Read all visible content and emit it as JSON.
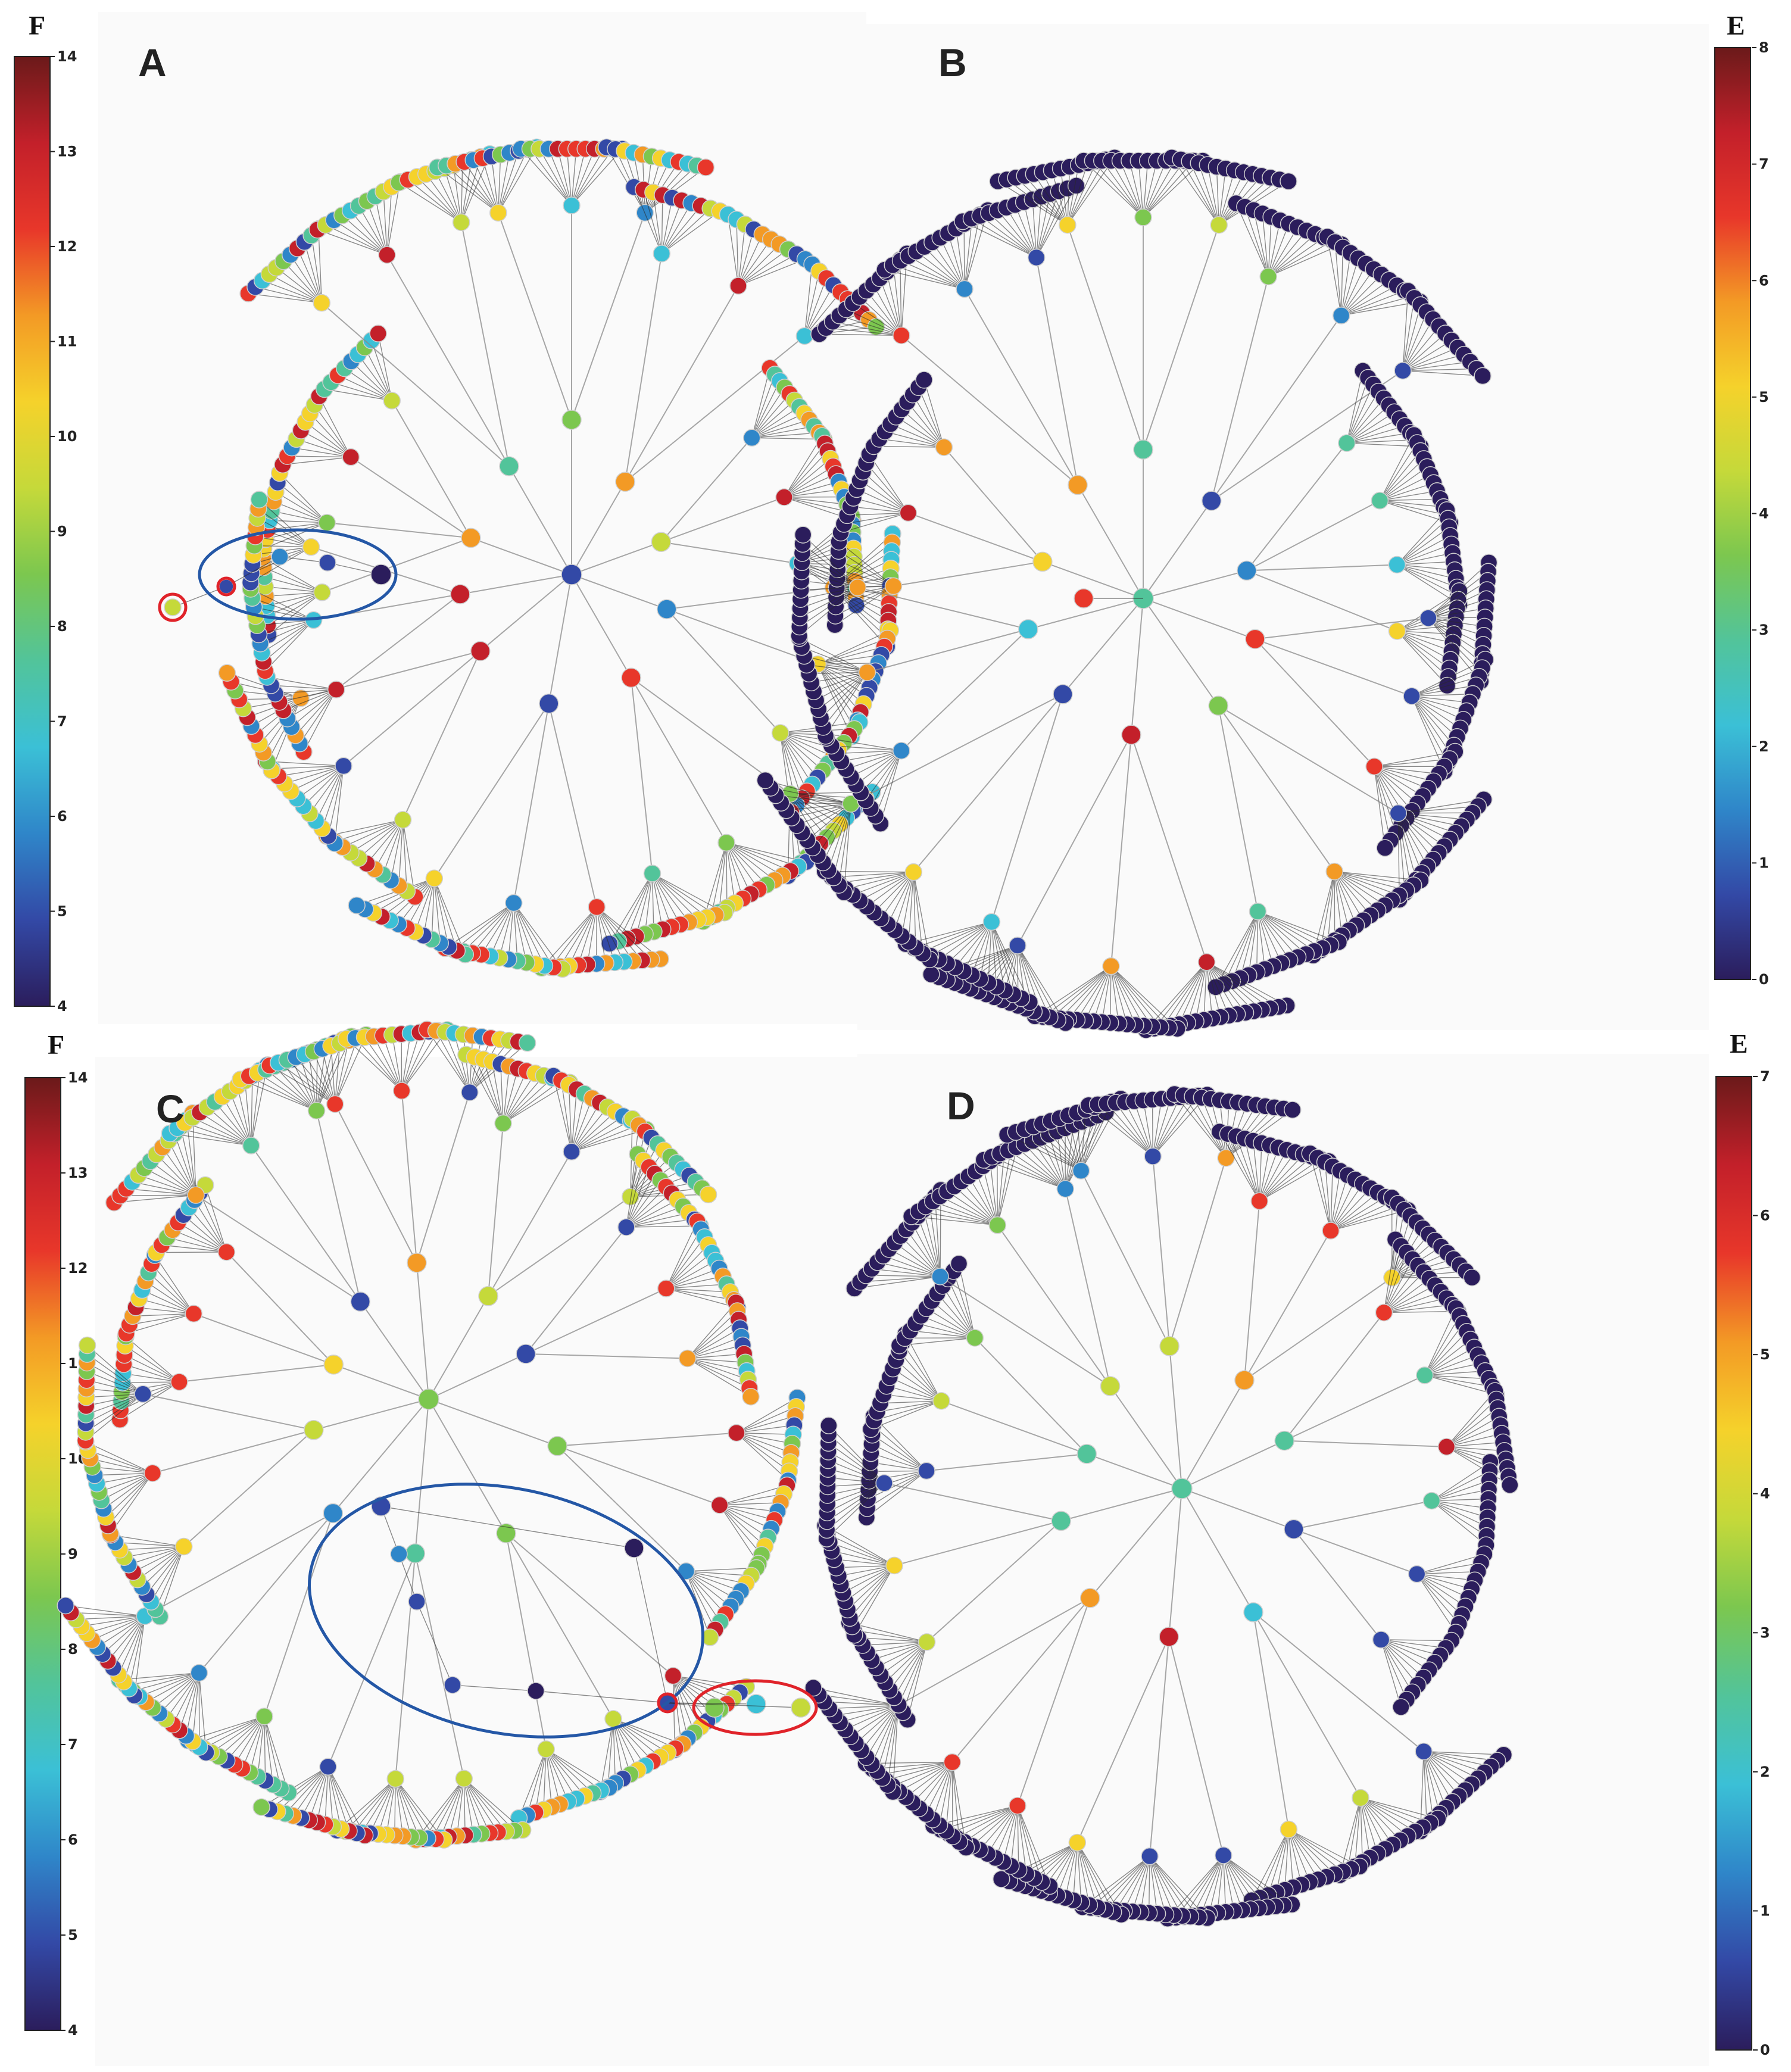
{
  "panels": [
    {
      "id": "A",
      "label": "A",
      "scale_ref": "F"
    },
    {
      "id": "B",
      "label": "B",
      "scale_ref": "E"
    },
    {
      "id": "C",
      "label": "C",
      "scale_ref": "F"
    },
    {
      "id": "D",
      "label": "D",
      "scale_ref": "E"
    }
  ],
  "colorbars": [
    {
      "id": "cb-top-left",
      "title": "F",
      "ticks": [
        "14",
        "13",
        "12",
        "11",
        "10",
        "9",
        "8",
        "7",
        "6",
        "5",
        "4"
      ],
      "min": 4,
      "max": 14
    },
    {
      "id": "cb-top-right",
      "title": "E",
      "ticks": [
        "8",
        "7",
        "6",
        "5",
        "4",
        "3",
        "2",
        "1",
        "0"
      ],
      "min": 0,
      "max": 8
    },
    {
      "id": "cb-bottom-left",
      "title": "F",
      "ticks": [
        "14",
        "13",
        "12",
        "11",
        "10",
        "9",
        "8",
        "7",
        "6",
        "5",
        "4"
      ],
      "min": 4,
      "max": 14
    },
    {
      "id": "cb-bottom-right",
      "title": "E",
      "ticks": [
        "7",
        "6",
        "5",
        "4",
        "3",
        "2",
        "1",
        "0"
      ],
      "min": 0,
      "max": 7
    }
  ],
  "colormap": [
    "#2b1d5c",
    "#3349a6",
    "#2f86c9",
    "#3bc0d6",
    "#52c49a",
    "#7cc74f",
    "#c5d93a",
    "#f5d22b",
    "#f39a25",
    "#e8372a",
    "#c3202a",
    "#6b1a1a"
  ],
  "highlights": [
    {
      "panel": "A",
      "type": "ellipse",
      "color": "#2457a6"
    },
    {
      "panel": "A",
      "type": "circle",
      "color": "#e0232a"
    },
    {
      "panel": "C",
      "type": "ellipse",
      "color": "#2457a6"
    },
    {
      "panel": "C",
      "type": "ellipse",
      "color": "#e0232a"
    }
  ]
}
